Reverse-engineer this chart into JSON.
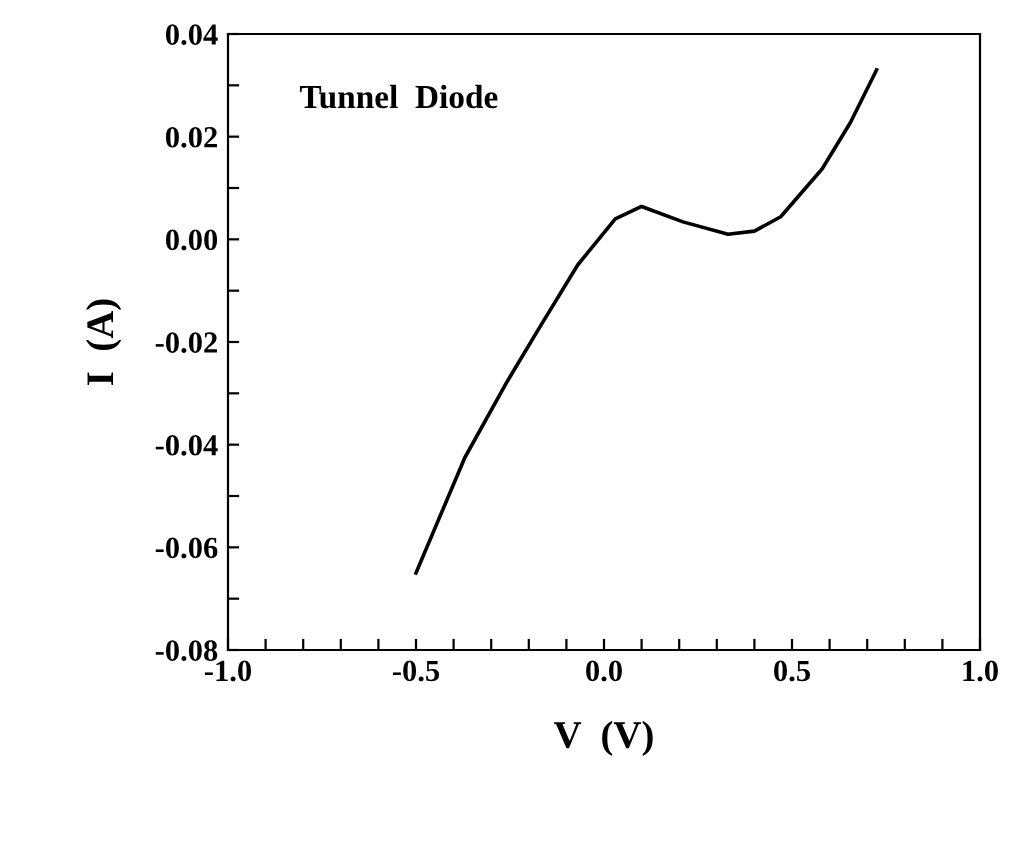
{
  "chart_data": {
    "type": "line",
    "xlabel": "V  (V)",
    "ylabel": "I  (A)",
    "annotations": [
      "Tunnel  Diode"
    ],
    "x": [
      -0.5,
      -0.37,
      -0.26,
      -0.17,
      -0.07,
      0.03,
      0.1,
      0.21,
      0.33,
      0.4,
      0.47,
      0.58,
      0.655,
      0.725
    ],
    "series": [
      {
        "color": "#000000",
        "values": [
          -0.065,
          -0.0425,
          -0.028,
          -0.017,
          -0.005,
          0.004,
          0.0064,
          0.0034,
          0.001,
          0.0016,
          0.0044,
          0.0137,
          0.0227,
          0.033
        ]
      }
    ],
    "xlim": [
      -1.0,
      1.0
    ],
    "ylim": [
      -0.08,
      0.04
    ],
    "xticks": [
      {
        "value": -1.0,
        "label": "-1.0"
      },
      {
        "value": -0.9,
        "label": null
      },
      {
        "value": -0.8,
        "label": null
      },
      {
        "value": -0.7,
        "label": null
      },
      {
        "value": -0.6,
        "label": null
      },
      {
        "value": -0.5,
        "label": "-0.5"
      },
      {
        "value": -0.4,
        "label": null
      },
      {
        "value": -0.3,
        "label": null
      },
      {
        "value": -0.2,
        "label": null
      },
      {
        "value": -0.1,
        "label": null
      },
      {
        "value": 0.0,
        "label": "0.0"
      },
      {
        "value": 0.1,
        "label": null
      },
      {
        "value": 0.2,
        "label": null
      },
      {
        "value": 0.3,
        "label": null
      },
      {
        "value": 0.4,
        "label": null
      },
      {
        "value": 0.5,
        "label": "0.5"
      },
      {
        "value": 0.6,
        "label": null
      },
      {
        "value": 0.7,
        "label": null
      },
      {
        "value": 0.8,
        "label": null
      },
      {
        "value": 0.9,
        "label": null
      },
      {
        "value": 1.0,
        "label": "1.0"
      }
    ],
    "yticks": [
      {
        "value": -0.08,
        "label": "-0.08"
      },
      {
        "value": -0.07,
        "label": null
      },
      {
        "value": -0.06,
        "label": "-0.06"
      },
      {
        "value": -0.05,
        "label": null
      },
      {
        "value": -0.04,
        "label": "-0.04"
      },
      {
        "value": -0.03,
        "label": null
      },
      {
        "value": -0.02,
        "label": "-0.02"
      },
      {
        "value": -0.01,
        "label": null
      },
      {
        "value": 0.0,
        "label": "0.00"
      },
      {
        "value": 0.01,
        "label": null
      },
      {
        "value": 0.02,
        "label": "0.02"
      },
      {
        "value": 0.03,
        "label": null
      },
      {
        "value": 0.04,
        "label": "0.04"
      }
    ],
    "grid": false,
    "legend": false,
    "marker": "none",
    "line_style": "solid"
  }
}
